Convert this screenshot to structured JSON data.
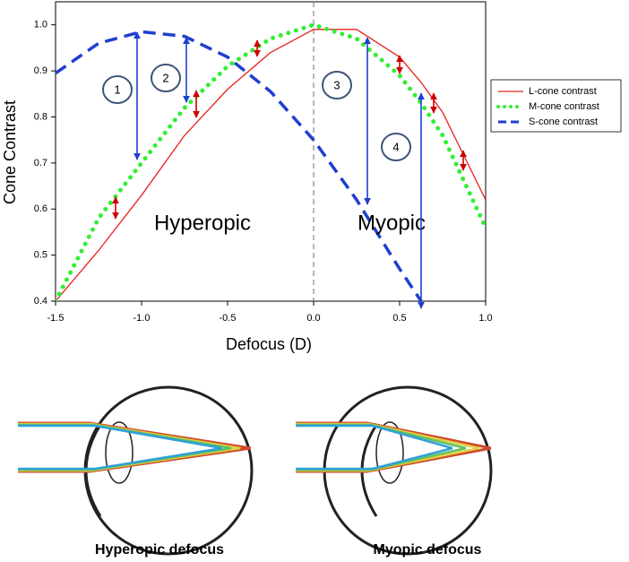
{
  "chart_data": {
    "type": "line",
    "x_label": "Defocus (D)",
    "y_label": "Cone Contrast",
    "x": [
      -1.5,
      -1.25,
      -1.0,
      -0.75,
      -0.5,
      -0.25,
      0,
      0.25,
      0.5,
      0.625,
      0.75,
      1.0
    ],
    "series": [
      {
        "name": "L-cone contrast",
        "color": "#e8201c",
        "values": [
          0.4,
          0.51,
          0.63,
          0.76,
          0.86,
          0.94,
          0.99,
          0.99,
          0.93,
          0.875,
          0.81,
          0.62
        ]
      },
      {
        "name": "M-cone contrast",
        "color": "#33ee33",
        "values": [
          0.4,
          0.58,
          0.7,
          0.82,
          0.91,
          0.97,
          1.0,
          0.97,
          0.89,
          0.83,
          0.76,
          0.56
        ]
      },
      {
        "name": "S-cone contrast",
        "color": "#1f3fd0",
        "values": [
          0.895,
          0.96,
          0.985,
          0.975,
          0.93,
          0.855,
          0.75,
          0.62,
          0.47,
          0.4,
          null,
          null
        ]
      }
    ],
    "xlim": [
      -1.5,
      1.0
    ],
    "ylim": [
      0.4,
      1.05
    ],
    "xticks": [
      -1.5,
      {
        "value": -1.0,
        "label": "-1.0"
      },
      -0.5,
      {
        "value": 0.0,
        "label": "0.0"
      },
      0.5,
      {
        "value": 1.0,
        "label": "1.0"
      }
    ],
    "yticks": [
      0.4,
      0.5,
      0.6,
      0.7,
      0.8,
      0.9,
      {
        "value": 1.0,
        "label": "1.0"
      }
    ],
    "reference_line_x": 0,
    "annotations": [
      "Hyperopic",
      "Myopic"
    ],
    "markers": [
      "1",
      "2",
      "3",
      "4"
    ],
    "legend": "right"
  },
  "diagrams": [
    {
      "caption": "Hyperopic defocus"
    },
    {
      "caption": "Myopic defocus"
    }
  ]
}
